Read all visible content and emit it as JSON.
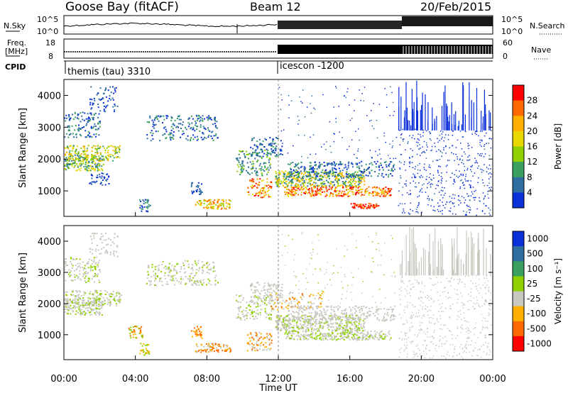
{
  "header": {
    "site": "Goose Bay (fitACF)",
    "beam": "Beam 12",
    "date": "20/Feb/2015"
  },
  "top_panels": {
    "nsky_label": "N.Sky",
    "nsky_ticks": [
      "10^5",
      "10^0"
    ],
    "nsearch_label": "N.Search",
    "nsearch_ticks": [
      "10^5",
      "10^0"
    ],
    "freq_label": "Freq.",
    "freq_unit": "[MHz]",
    "freq_ticks": [
      "18",
      "8"
    ],
    "nave_label": "Nave",
    "nave_ticks": [
      "60",
      "0"
    ],
    "cpid_label": "CPID",
    "cpid_segments": [
      {
        "name": "themis (tau) 3310",
        "start_hour": 0
      },
      {
        "name": "icescon -1200",
        "start_hour": 12
      }
    ]
  },
  "chart_data": [
    {
      "type": "heatmap",
      "ylabel": "Slant Range [km]",
      "ylim": [
        200,
        4500
      ],
      "yticks": [
        1000,
        2000,
        3000,
        4000
      ],
      "xlim": [
        0,
        24
      ],
      "xticks": [
        "00:00",
        "04:00",
        "08:00",
        "12:00",
        "16:00",
        "20:00",
        "00:00"
      ],
      "colorbar_label": "Power [dB]",
      "colorbar_ticks": [
        "28",
        "24",
        "20",
        "16",
        "12",
        "8",
        "4"
      ],
      "colors": [
        "#ff0000",
        "#ff6a00",
        "#ffb000",
        "#e8d800",
        "#8fd000",
        "#3aa060",
        "#2f6fa0",
        "#0b2fd8"
      ]
    },
    {
      "type": "heatmap",
      "ylabel": "Slant Range [km]",
      "ylim": [
        200,
        4500
      ],
      "yticks": [
        1000,
        2000,
        3000,
        4000
      ],
      "xlim": [
        0,
        24
      ],
      "xticks": [
        "00:00",
        "04:00",
        "08:00",
        "12:00",
        "16:00",
        "20:00",
        "00:00"
      ],
      "xlabel": "Time UT",
      "colorbar_label": "Velocity [m s⁻¹]",
      "colorbar_ticks": [
        "1000",
        "500",
        "100",
        "25",
        "-25",
        "-100",
        "-500",
        "-1000"
      ],
      "colors": [
        "#0b2fd8",
        "#2f6fa0",
        "#3aa060",
        "#8fd000",
        "#c8c8c0",
        "#ffb000",
        "#ff6a00",
        "#ff0000"
      ]
    }
  ]
}
